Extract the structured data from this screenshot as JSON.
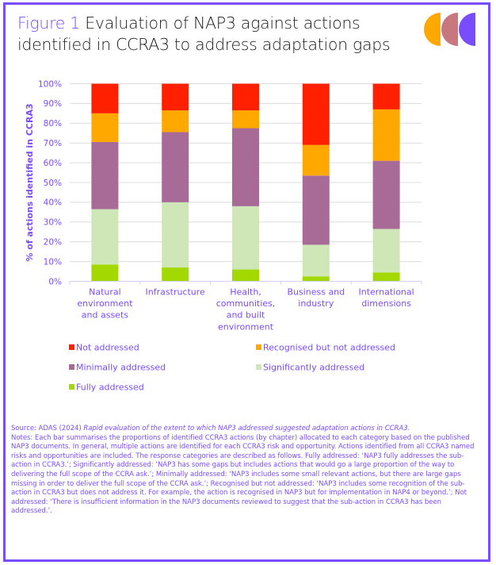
{
  "figure": {
    "label": "Figure 1",
    "title": "Evaluation of NAP3 against actions identified in CCRA3 to address adaptation gaps",
    "logo_colors": [
      "#ffa800",
      "#c8777f",
      "#7a4cff"
    ]
  },
  "colors": {
    "frame": "#7a4cff",
    "text_accent": "#7a4cff"
  },
  "chart_data": {
    "type": "bar",
    "stacked": true,
    "title": "Evaluation of NAP3 against actions identified in CCRA3 to address adaptation gaps",
    "xlabel": "",
    "ylabel": "% of actions identified in CCRA3",
    "ylim": [
      0,
      100
    ],
    "y_ticks": [
      "0%",
      "10%",
      "20%",
      "30%",
      "40%",
      "50%",
      "60%",
      "70%",
      "80%",
      "90%",
      "100%"
    ],
    "grid": true,
    "legend_position": "bottom",
    "categories": [
      [
        "Natural",
        "environment",
        "and assets"
      ],
      [
        "Infrastructure"
      ],
      [
        "Health,",
        "communities,",
        "and built",
        "environment"
      ],
      [
        "Business and",
        "industry"
      ],
      [
        "International",
        "dimensions"
      ]
    ],
    "series": [
      {
        "name": "Fully addressed",
        "color": "#a3d900",
        "values": [
          8.5,
          7,
          6,
          2.5,
          4.5
        ]
      },
      {
        "name": "Significantly addressed",
        "color": "#cfe7b6",
        "values": [
          28,
          33,
          32,
          16,
          22
        ]
      },
      {
        "name": "Minimally addressed",
        "color": "#a86b98",
        "values": [
          34,
          35.5,
          39.5,
          35,
          34.5
        ]
      },
      {
        "name": "Recognised but not addressed",
        "color": "#ffa800",
        "values": [
          14.5,
          11,
          9,
          15.5,
          26
        ]
      },
      {
        "name": "Not addressed",
        "color": "#ff2000",
        "values": [
          15,
          13.5,
          13.5,
          31,
          13
        ]
      }
    ],
    "legend_order": [
      "Not addressed",
      "Recognised but not addressed",
      "Minimally addressed",
      "Significantly addressed",
      "Fully addressed"
    ]
  },
  "notes": {
    "source_prefix": "Source: ADAS (2024) ",
    "source_title": "Rapid evaluation of the extent to which NAP3 addressed suggested adaptation actions in CCRA3.",
    "body": "Notes: Each bar summarises the proportions of identified CCRA3 actions (by chapter) allocated to each category based on the published NAP3 documents. In general, multiple actions are identified for each CCRA3 risk and opportunity. Actions identified from all CCRA3 named risks and opportunities are included. The response categories are described as follows. Fully addressed: ‘NAP3 fully addresses the sub-action in CCRA3.’; Significantly addressed: ‘NAP3 has some gaps but includes actions that would go a large proportion of the way to delivering the full scope of the CCRA ask.’; Minimally addressed: ‘NAP3 includes some small relevant actions, but there are large gaps missing in order to deliver the full scope of the CCRA ask.’; Recognised but not addressed: ‘NAP3 includes some recognition of the sub-action in CCRA3 but does not address it. For example, the action is recognised in NAP3 but for implementation in NAP4 or beyond.’; Not addressed: ‘There is insufficient information in the NAP3 documents reviewed to suggest that the sub-action in CCRA3 has been addressed.’."
  }
}
